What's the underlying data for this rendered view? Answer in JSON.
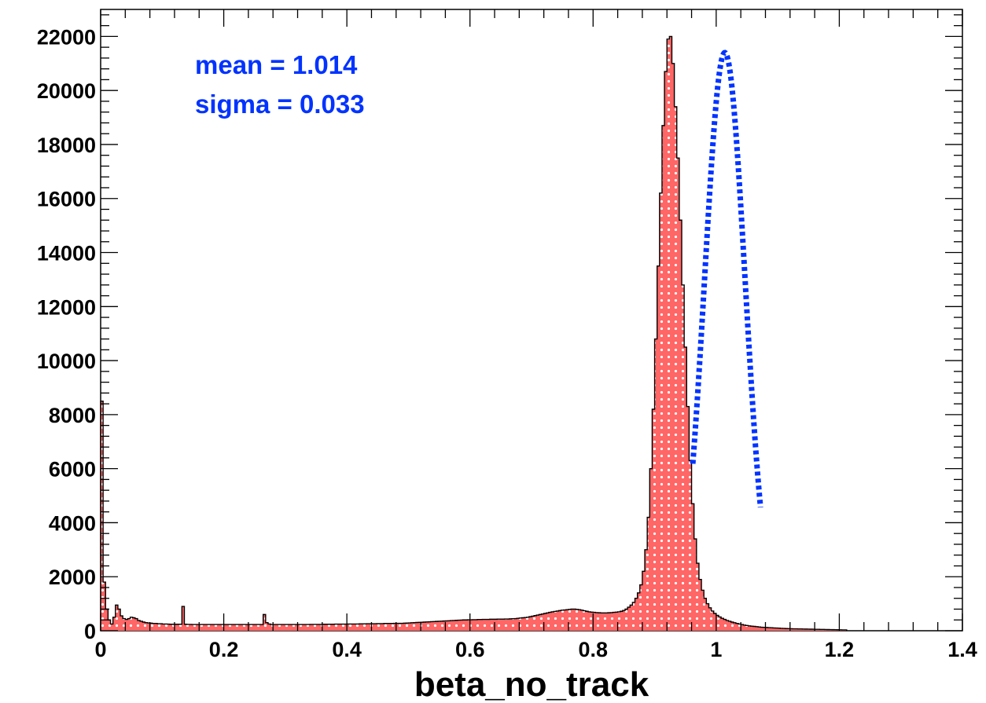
{
  "chart_data": {
    "type": "histogram",
    "xlabel": "beta_no_track",
    "ylabel": "",
    "xlim": [
      0,
      1.4
    ],
    "ylim": [
      0,
      23000
    ],
    "x_ticks": [
      "0",
      "0.2",
      "0.4",
      "0.6",
      "0.8",
      "1",
      "1.2",
      "1.4"
    ],
    "y_ticks": [
      "0",
      "2000",
      "4000",
      "6000",
      "8000",
      "10000",
      "12000",
      "14000",
      "16000",
      "18000",
      "20000",
      "22000"
    ],
    "grid": false,
    "colors": {
      "fill": "#ff6666",
      "hatch": "#ffffff",
      "outline": "#000000",
      "fit": "#0033ff",
      "stats": "#0033ff"
    },
    "histogram": {
      "name": "beta_no_track",
      "bin_width": 0.004,
      "x_start": 0,
      "values": [
        8500,
        1800,
        800,
        400,
        250,
        500,
        950,
        800,
        550,
        450,
        420,
        450,
        500,
        480,
        450,
        380,
        350,
        320,
        300,
        290,
        280,
        270,
        270,
        260,
        260,
        250,
        250,
        245,
        240,
        240,
        240,
        240,
        240,
        900,
        240,
        235,
        235,
        230,
        230,
        230,
        230,
        230,
        230,
        230,
        230,
        230,
        230,
        230,
        230,
        230,
        230,
        230,
        230,
        230,
        230,
        230,
        230,
        230,
        230,
        230,
        230,
        230,
        230,
        230,
        230,
        230,
        600,
        300,
        250,
        230,
        230,
        230,
        230,
        230,
        230,
        230,
        230,
        230,
        230,
        230,
        230,
        230,
        230,
        230,
        230,
        235,
        235,
        235,
        235,
        235,
        240,
        240,
        240,
        240,
        240,
        245,
        245,
        245,
        245,
        245,
        250,
        250,
        250,
        250,
        250,
        255,
        255,
        255,
        260,
        260,
        260,
        260,
        265,
        265,
        265,
        270,
        270,
        270,
        270,
        275,
        275,
        275,
        275,
        280,
        285,
        290,
        295,
        300,
        305,
        310,
        315,
        320,
        325,
        330,
        335,
        340,
        345,
        350,
        355,
        360,
        365,
        370,
        375,
        380,
        385,
        390,
        395,
        400,
        400,
        405,
        405,
        410,
        410,
        415,
        415,
        420,
        420,
        420,
        425,
        425,
        425,
        430,
        430,
        430,
        435,
        435,
        440,
        445,
        450,
        460,
        470,
        480,
        490,
        500,
        520,
        540,
        560,
        580,
        600,
        620,
        640,
        660,
        680,
        700,
        715,
        730,
        745,
        760,
        770,
        780,
        790,
        800,
        800,
        790,
        780,
        760,
        740,
        720,
        700,
        690,
        680,
        670,
        665,
        660,
        660,
        660,
        665,
        670,
        680,
        690,
        700,
        720,
        750,
        800,
        870,
        950,
        1050,
        1200,
        1400,
        1700,
        2200,
        3000,
        4200,
        6000,
        8200,
        10800,
        13500,
        16200,
        18700,
        20700,
        21900,
        22000,
        21000,
        19400,
        17500,
        15200,
        12800,
        10500,
        8300,
        6300,
        4700,
        3400,
        2500,
        1900,
        1500,
        1200,
        1000,
        850,
        730,
        640,
        570,
        510,
        460,
        420,
        380,
        350,
        320,
        295,
        270,
        250,
        230,
        210,
        195,
        180,
        170,
        160,
        150,
        140,
        130,
        125,
        120,
        115,
        110,
        105,
        100,
        95,
        90,
        85,
        80,
        78,
        75,
        72,
        70,
        68,
        66,
        64,
        62,
        60,
        58,
        56,
        54,
        52,
        50,
        48,
        46,
        44,
        42,
        40,
        38,
        36,
        34,
        32,
        30
      ]
    },
    "fit": {
      "type": "gaussian",
      "mean": 1.014,
      "sigma": 0.033,
      "amplitude": 21400,
      "x_range": [
        0.962,
        1.072
      ]
    },
    "annotations": {
      "mean_label": "mean = 1.014",
      "sigma_label": "sigma = 0.033"
    }
  }
}
